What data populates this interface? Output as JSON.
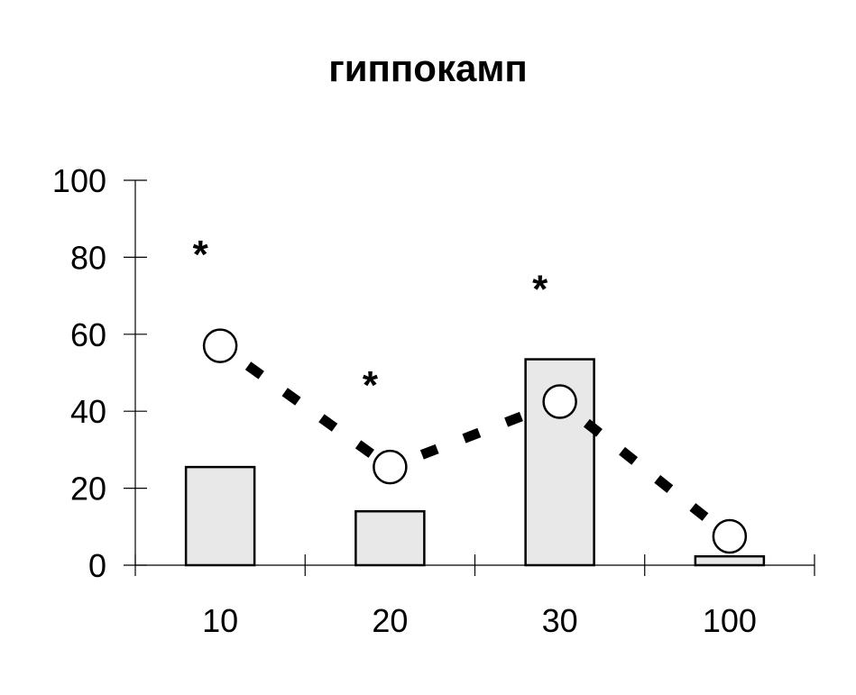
{
  "chart_data": {
    "type": "bar",
    "title": "гиппокамп",
    "xlabel": "",
    "ylabel": "",
    "categories": [
      "10",
      "20",
      "30",
      "100"
    ],
    "ylim": [
      0,
      100
    ],
    "yticks": [
      "0",
      "20",
      "40",
      "60",
      "80",
      "100"
    ],
    "series": [
      {
        "kind": "bar",
        "values": [
          25.5,
          14,
          53.5,
          2.3
        ],
        "fill": "#e8e8e8",
        "stroke": "#000000"
      },
      {
        "kind": "line",
        "style": "dashed",
        "marker": "open-circle",
        "values": [
          57,
          25.5,
          42.5,
          7.5
        ],
        "color": "#000000"
      }
    ],
    "annotations": [
      {
        "text": "*",
        "category": "10",
        "y": 82
      },
      {
        "text": "*",
        "category": "20",
        "y": 48
      },
      {
        "text": "*",
        "category": "30",
        "y": 73
      }
    ],
    "grid": false,
    "legend": "none"
  }
}
